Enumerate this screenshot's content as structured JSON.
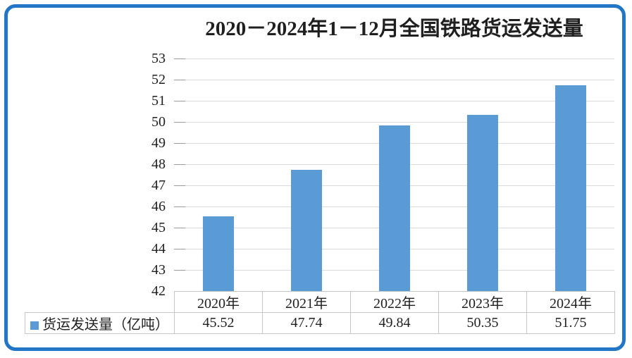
{
  "window": {
    "background": "#ffffff",
    "frame_color": "#2176C7"
  },
  "chart_data": {
    "type": "bar",
    "title": "2020－2024年1－12月全国铁路货运发送量",
    "categories": [
      "2020年",
      "2021年",
      "2022年",
      "2023年",
      "2024年"
    ],
    "series": [
      {
        "name": "货运发送量（亿吨）",
        "values": [
          45.52,
          47.74,
          49.84,
          50.35,
          51.75
        ]
      }
    ],
    "ylim": [
      42,
      53
    ],
    "yticks": [
      53,
      52,
      51,
      50,
      49,
      48,
      47,
      46,
      45,
      44,
      43,
      42
    ],
    "grid": true,
    "legend_position": "bottom-table-row",
    "bar_color": "#5B9BD5",
    "gridline_color": "#DADADA",
    "data_table_shown": true
  }
}
